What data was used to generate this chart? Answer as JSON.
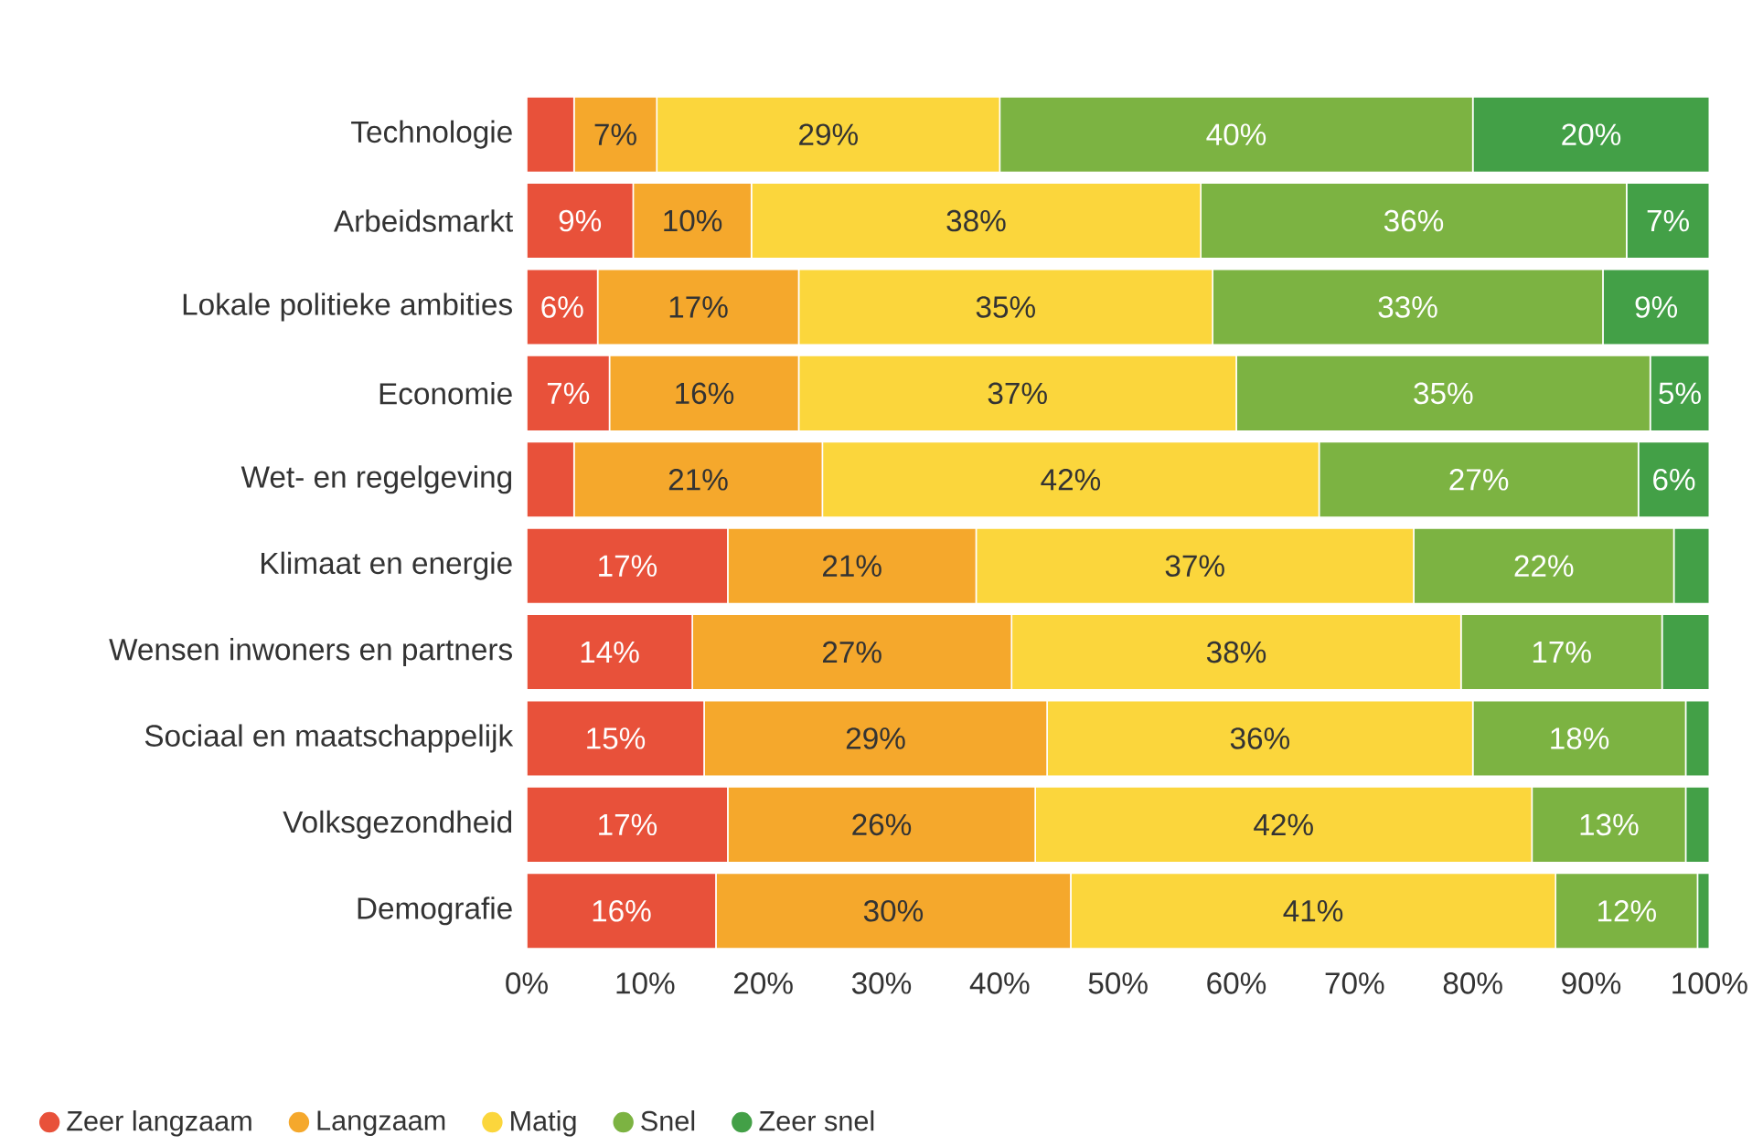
{
  "chart_data": {
    "type": "bar",
    "orientation": "horizontal",
    "stacked": true,
    "categories": [
      "Technologie",
      "Arbeidsmarkt",
      "Lokale politieke ambities",
      "Economie",
      "Wet- en regelgeving",
      "Klimaat en energie",
      "Wensen inwoners en partners",
      "Sociaal en maatschappelijk",
      "Volksgezondheid",
      "Demografie"
    ],
    "series": [
      {
        "name": "Zeer langzaam",
        "color": "#e8513a",
        "values": [
          4,
          9,
          6,
          7,
          4,
          17,
          14,
          15,
          17,
          16
        ],
        "value_labels": [
          null,
          "9%",
          "6%",
          "7%",
          null,
          "17%",
          "14%",
          "15%",
          "17%",
          "16%"
        ]
      },
      {
        "name": "Langzaam",
        "color": "#f5a82c",
        "values": [
          7,
          10,
          17,
          16,
          21,
          21,
          27,
          29,
          26,
          30
        ],
        "value_labels": [
          "7%",
          "10%",
          "17%",
          "16%",
          "21%",
          "21%",
          "27%",
          "29%",
          "26%",
          "30%"
        ]
      },
      {
        "name": "Matig",
        "color": "#fbd63c",
        "values": [
          29,
          38,
          35,
          37,
          42,
          37,
          38,
          36,
          42,
          41
        ],
        "value_labels": [
          "29%",
          "38%",
          "35%",
          "37%",
          "42%",
          "37%",
          "38%",
          "36%",
          "42%",
          "41%"
        ]
      },
      {
        "name": "Snel",
        "color": "#7cb342",
        "values": [
          40,
          36,
          33,
          35,
          27,
          22,
          17,
          18,
          13,
          12
        ],
        "value_labels": [
          "40%",
          "36%",
          "33%",
          "35%",
          "27%",
          "22%",
          "17%",
          "18%",
          "13%",
          "12%"
        ]
      },
      {
        "name": "Zeer snel",
        "color": "#43a047",
        "values": [
          20,
          7,
          9,
          5,
          6,
          3,
          4,
          2,
          2,
          1
        ],
        "value_labels": [
          "20%",
          "7%",
          "9%",
          "5%",
          "6%",
          null,
          null,
          null,
          null,
          null
        ]
      }
    ],
    "xlim": [
      0,
      100
    ],
    "xticks": [
      {
        "value": 0,
        "label": "0%"
      },
      {
        "value": 10,
        "label": "10%"
      },
      {
        "value": 20,
        "label": "20%"
      },
      {
        "value": 30,
        "label": "30%"
      },
      {
        "value": 40,
        "label": "40%"
      },
      {
        "value": 50,
        "label": "50%"
      },
      {
        "value": 60,
        "label": "60%"
      },
      {
        "value": 70,
        "label": "70%"
      },
      {
        "value": 80,
        "label": "80%"
      },
      {
        "value": 90,
        "label": "90%"
      },
      {
        "value": 100,
        "label": "100%"
      }
    ],
    "legend": "bottom",
    "marker": "circle"
  }
}
